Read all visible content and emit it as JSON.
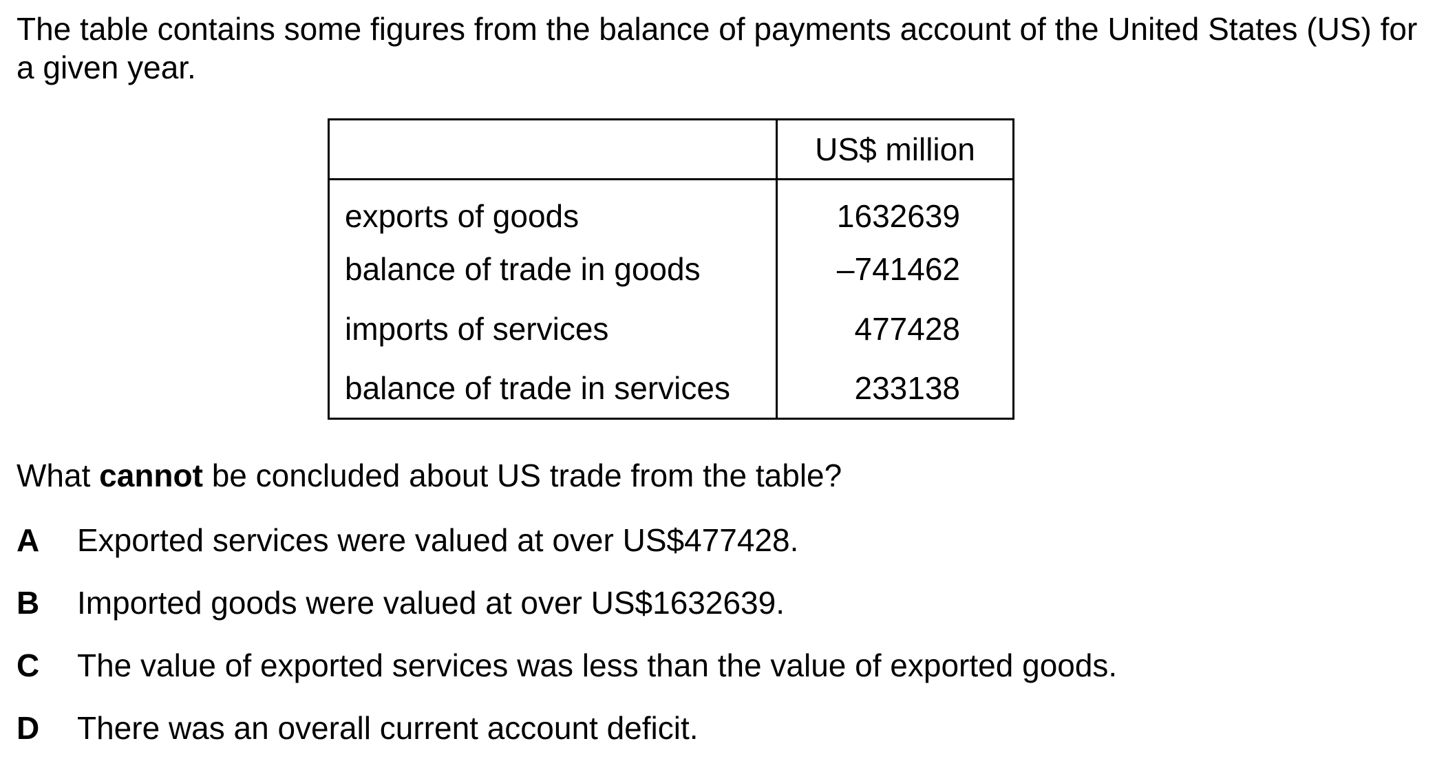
{
  "intro": "The table contains some figures from the balance of payments account of the United States (US) for a given year.",
  "table": {
    "header": [
      "",
      "US$ million"
    ],
    "rows": [
      {
        "label": "exports of goods",
        "value": "1632639"
      },
      {
        "label": "balance of trade in goods",
        "value": "–741462"
      },
      {
        "label": "imports of services",
        "value": "477428"
      },
      {
        "label": "balance of trade in services",
        "value": "233138"
      }
    ]
  },
  "question": {
    "before": "What ",
    "emphasis": "cannot",
    "after": " be concluded about US trade from the table?"
  },
  "options": [
    {
      "letter": "A",
      "text": "Exported services were valued at over US$477428."
    },
    {
      "letter": "B",
      "text": "Imported goods were valued at over US$1632639."
    },
    {
      "letter": "C",
      "text": "The value of exported services was less than the value of exported goods."
    },
    {
      "letter": "D",
      "text": "There was an overall current account deficit."
    }
  ]
}
